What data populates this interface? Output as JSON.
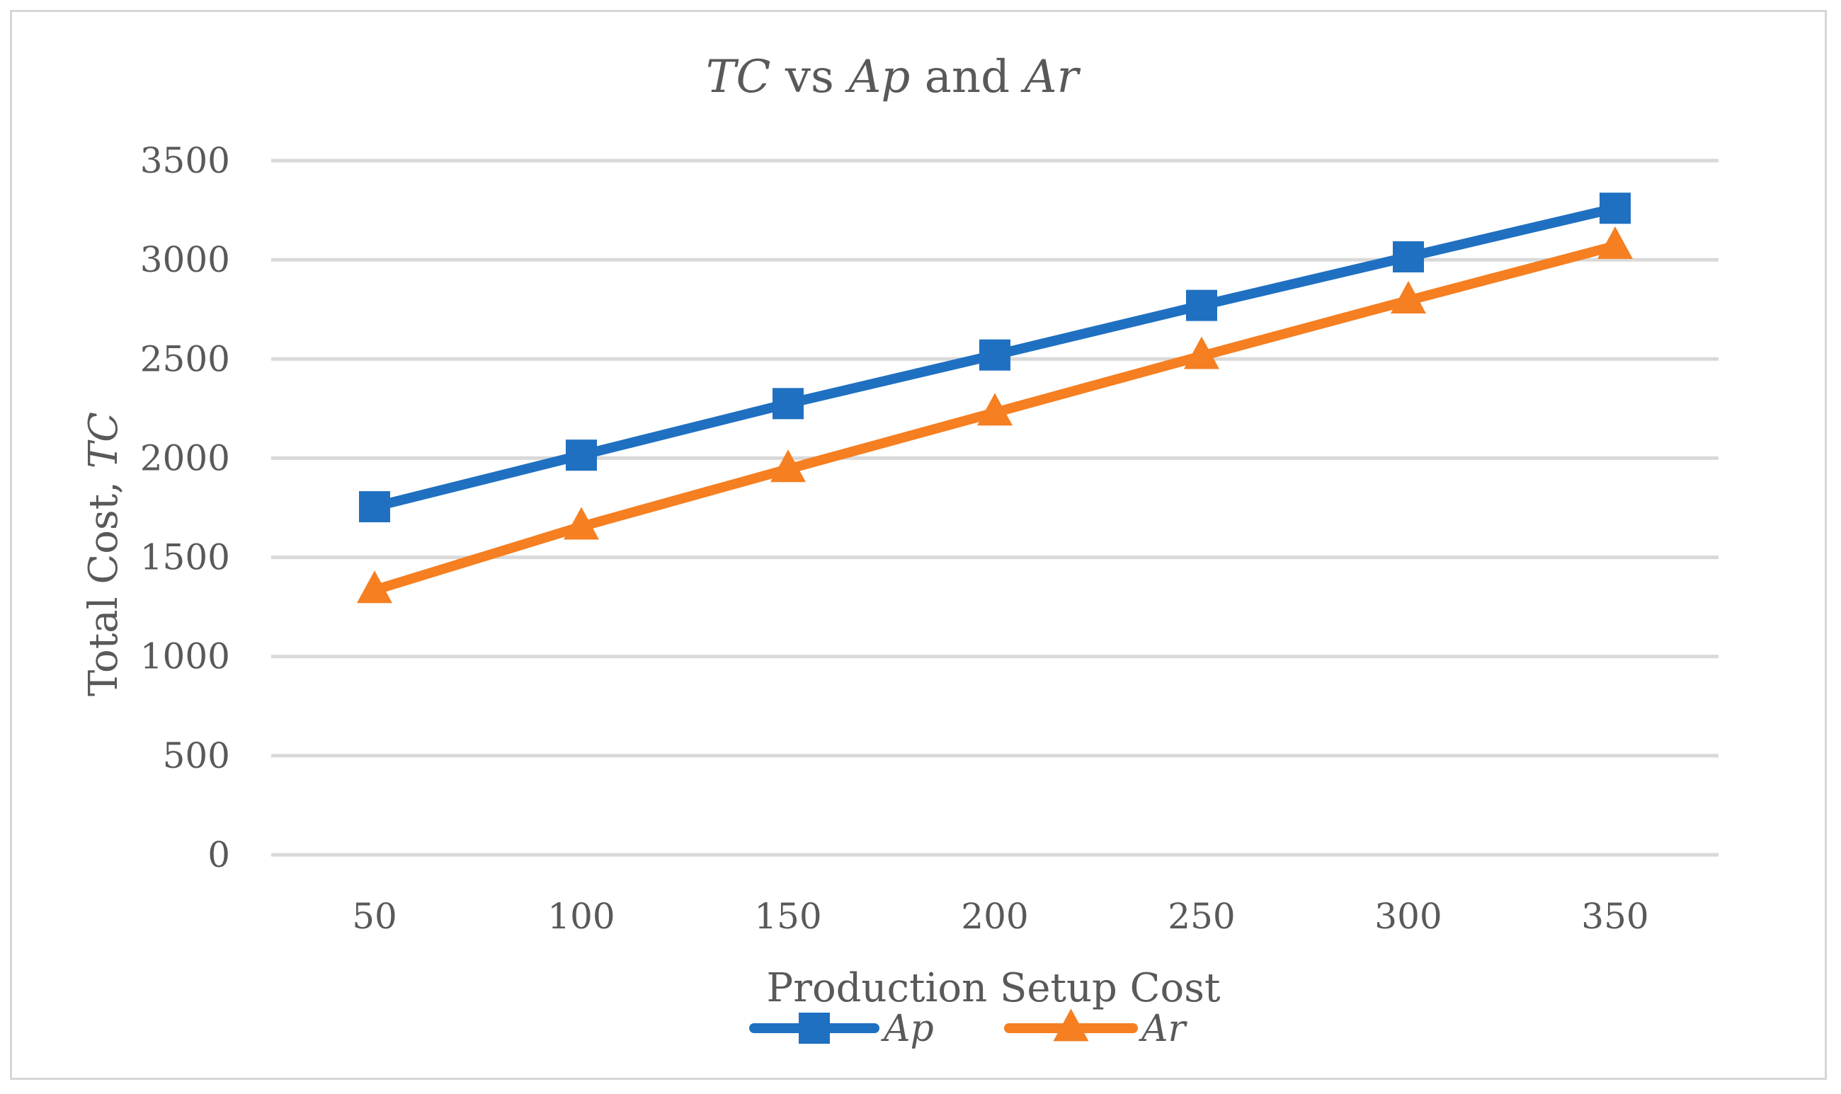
{
  "chart_data": {
    "type": "line",
    "title": {
      "italic_1": "TC",
      "plain_1": " vs ",
      "italic_2": "Ap",
      "plain_2": " and ",
      "italic_3": "Ar"
    },
    "xlabel": "Production Setup Cost",
    "ylabel": {
      "plain": "Total Cost, ",
      "italic": "TC"
    },
    "categories": [
      "50",
      "100",
      "150",
      "200",
      "250",
      "300",
      "350"
    ],
    "yticks": [
      "0",
      "500",
      "1000",
      "1500",
      "2000",
      "2500",
      "3000",
      "3500"
    ],
    "ylim": [
      0,
      3500
    ],
    "grid": true,
    "legend": "bottom-center",
    "series": [
      {
        "name": "Ap",
        "marker": "square",
        "color": "#1f70c1",
        "values": [
          1755,
          2015,
          2275,
          2520,
          2770,
          3015,
          3260
        ]
      },
      {
        "name": "Ar",
        "marker": "triangle",
        "color": "#f57f21",
        "values": [
          1335,
          1655,
          1945,
          2230,
          2515,
          2795,
          3070
        ]
      }
    ]
  }
}
